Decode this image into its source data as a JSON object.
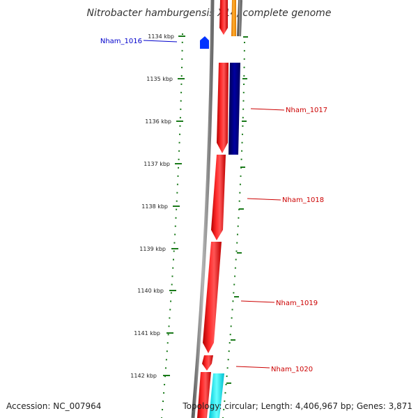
{
  "title": "Nitrobacter hamburgensis X14, complete genome",
  "ticks": [
    "1134 kbp",
    "1135 kbp",
    "1136 kbp",
    "1137 kbp",
    "1138 kbp",
    "1139 kbp",
    "1140 kbp",
    "1141 kbp",
    "1142 kbp"
  ],
  "genes": [
    {
      "label": "Nham_1016",
      "color": "#0000cc"
    },
    {
      "label": "Nham_1017",
      "color": "#cc0000"
    },
    {
      "label": "Nham_1018",
      "color": "#cc0000"
    },
    {
      "label": "Nham_1019",
      "color": "#cc0000"
    },
    {
      "label": "Nham_1020",
      "color": "#cc0000"
    }
  ],
  "footer": {
    "accession": "Accession: NC_007964",
    "topology": "Topology: circular; Length: 4,406,967 bp; Genes: 3,871"
  },
  "colors": {
    "backbone": "#8c8c8c",
    "forward_strand": "#ff0000",
    "reverse_strand": "#000080",
    "tick": "#1a7a1a",
    "orange_feature": "#ff9900",
    "cyan_feature": "#00ffff",
    "blue_feature": "#0033ff"
  }
}
